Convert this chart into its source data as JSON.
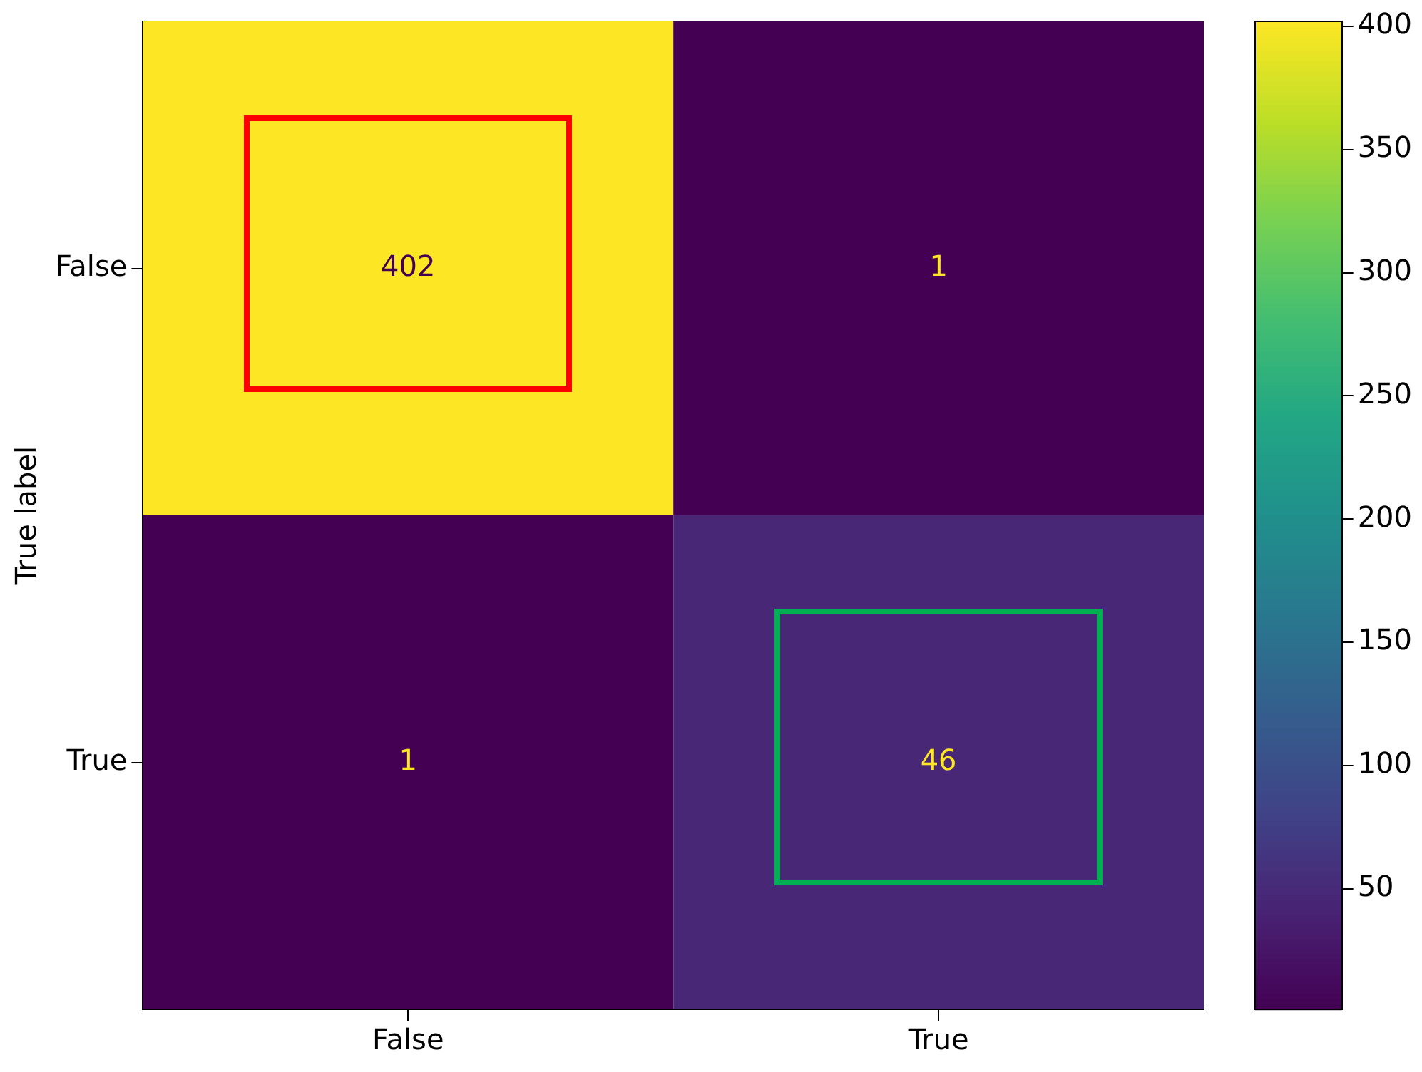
{
  "chart_data": {
    "type": "heatmap",
    "ylabel": "True label",
    "categories": [
      "False",
      "True"
    ],
    "y_categories": [
      "False",
      "True"
    ],
    "cells": [
      [
        402,
        1
      ],
      [
        1,
        46
      ]
    ],
    "cell_labels": [
      [
        "402",
        "1"
      ],
      [
        "1",
        "46"
      ]
    ],
    "clim": [
      1,
      402
    ],
    "cticks": [
      50,
      100,
      150,
      200,
      250,
      300,
      350,
      400
    ]
  }
}
